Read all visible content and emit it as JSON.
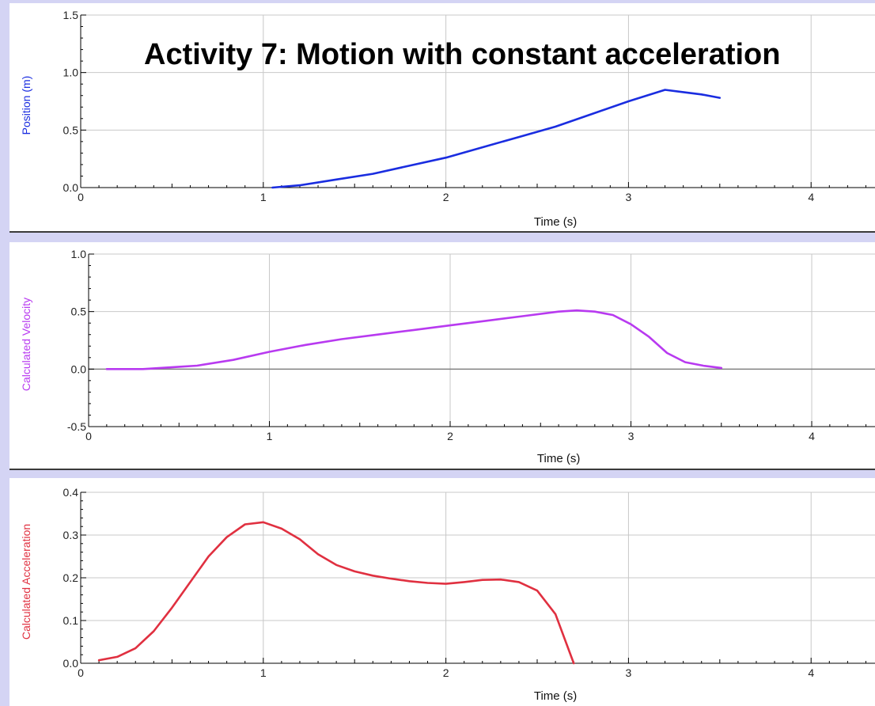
{
  "slide_title": "Activity 7: Motion with constant acceleration",
  "chart_data": [
    {
      "type": "line",
      "xlabel": "Time (s)",
      "ylabel": "Position (m)",
      "xlim": [
        0,
        4.35
      ],
      "ylim": [
        0.0,
        1.5
      ],
      "xticks": [
        0,
        1,
        2,
        3,
        4
      ],
      "yticks": [
        0.0,
        0.5,
        1.0,
        1.5
      ],
      "ytick_labels": [
        "0.0",
        "0.5",
        "1.0",
        "1.5"
      ],
      "zero_line": false,
      "color": "#1a2de0",
      "series": [
        {
          "x": [
            1.05,
            1.2,
            1.4,
            1.6,
            1.8,
            2.0,
            2.2,
            2.4,
            2.6,
            2.8,
            3.0,
            3.2,
            3.3,
            3.4,
            3.5
          ],
          "y": [
            0.0,
            0.02,
            0.07,
            0.12,
            0.19,
            0.26,
            0.35,
            0.44,
            0.53,
            0.64,
            0.75,
            0.85,
            0.83,
            0.81,
            0.78
          ]
        }
      ]
    },
    {
      "type": "line",
      "xlabel": "Time (s)",
      "ylabel": "Calculated Velocity",
      "xlim": [
        0,
        4.35
      ],
      "ylim": [
        -0.5,
        1.0
      ],
      "xticks": [
        0,
        1,
        2,
        3,
        4
      ],
      "yticks": [
        -0.5,
        0.0,
        0.5,
        1.0
      ],
      "ytick_labels": [
        "-0.5",
        "0.0",
        "0.5",
        "1.0"
      ],
      "zero_line": true,
      "color": "#b83af0",
      "series": [
        {
          "x": [
            0.1,
            0.3,
            0.5,
            0.6,
            0.8,
            1.0,
            1.2,
            1.4,
            1.6,
            1.8,
            2.0,
            2.2,
            2.4,
            2.6,
            2.7,
            2.8,
            2.9,
            3.0,
            3.1,
            3.2,
            3.3,
            3.4,
            3.5
          ],
          "y": [
            0.0,
            0.0,
            0.02,
            0.03,
            0.08,
            0.15,
            0.21,
            0.26,
            0.3,
            0.34,
            0.38,
            0.42,
            0.46,
            0.5,
            0.51,
            0.5,
            0.47,
            0.39,
            0.28,
            0.14,
            0.06,
            0.03,
            0.01
          ]
        }
      ]
    },
    {
      "type": "line",
      "xlabel": "Time (s)",
      "ylabel": "Calculated Acceleration",
      "xlim": [
        0,
        4.35
      ],
      "ylim": [
        0.0,
        0.4
      ],
      "xticks": [
        0,
        1,
        2,
        3,
        4
      ],
      "yticks": [
        0.0,
        0.1,
        0.2,
        0.3,
        0.4
      ],
      "ytick_labels": [
        "0.0",
        "0.1",
        "0.2",
        "0.3",
        "0.4"
      ],
      "zero_line": false,
      "color": "#e03040",
      "series": [
        {
          "x": [
            0.1,
            0.2,
            0.3,
            0.4,
            0.5,
            0.6,
            0.7,
            0.8,
            0.9,
            1.0,
            1.1,
            1.2,
            1.3,
            1.4,
            1.5,
            1.6,
            1.7,
            1.8,
            1.9,
            2.0,
            2.1,
            2.2,
            2.3,
            2.4,
            2.5,
            2.6,
            2.7
          ],
          "y": [
            0.007,
            0.015,
            0.035,
            0.075,
            0.13,
            0.19,
            0.25,
            0.295,
            0.325,
            0.33,
            0.315,
            0.29,
            0.255,
            0.23,
            0.215,
            0.205,
            0.198,
            0.192,
            0.188,
            0.186,
            0.19,
            0.195,
            0.196,
            0.19,
            0.17,
            0.115,
            0.0
          ]
        }
      ]
    }
  ]
}
